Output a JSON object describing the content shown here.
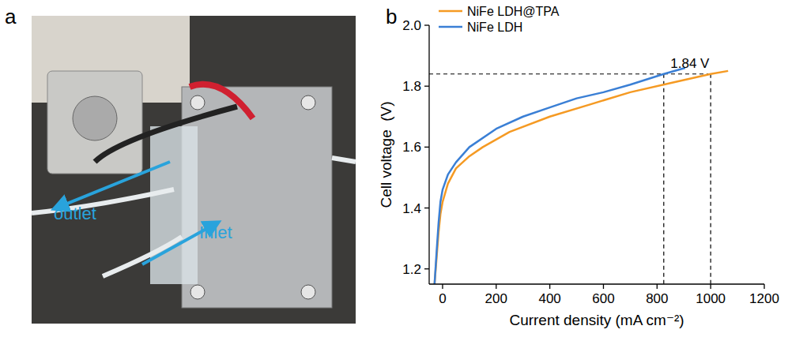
{
  "photo": {
    "label": "a",
    "outlet": "outlet",
    "inlet": "Inlet"
  },
  "chart_data": {
    "type": "line",
    "label": "b",
    "x_label": "Current density (mA cm⁻²)",
    "y_label": "Cell voltage  (V)",
    "xlim": [
      -50,
      1200
    ],
    "xticks": [
      0,
      200,
      400,
      600,
      800,
      1000,
      1200
    ],
    "ylim": [
      1.15,
      2.0
    ],
    "yticks": [
      1.2,
      1.4,
      1.6,
      1.8,
      {
        "value": 2.0,
        "label": "2.0"
      }
    ],
    "legend": "upper left",
    "grid": false,
    "series": [
      {
        "name": "NiFe LDH@TPA",
        "color": "#f59a23",
        "x": [
          -30,
          -22,
          -15,
          -8,
          0,
          20,
          50,
          100,
          150,
          250,
          400,
          550,
          700,
          850,
          1000,
          1065
        ],
        "values": [
          1.15,
          1.24,
          1.32,
          1.38,
          1.42,
          1.48,
          1.53,
          1.57,
          1.6,
          1.65,
          1.7,
          1.74,
          1.78,
          1.81,
          1.84,
          1.85
        ]
      },
      {
        "name": "NiFe LDH",
        "color": "#3a7fd5",
        "x": [
          -30,
          -22,
          -15,
          -8,
          0,
          20,
          50,
          100,
          200,
          300,
          400,
          500,
          600,
          700,
          825,
          905
        ],
        "values": [
          1.15,
          1.26,
          1.35,
          1.42,
          1.46,
          1.51,
          1.55,
          1.6,
          1.66,
          1.7,
          1.73,
          1.76,
          1.78,
          1.805,
          1.84,
          1.86
        ]
      }
    ],
    "guides": {
      "y": 1.84,
      "x": [
        825,
        1000
      ]
    },
    "annotations": [
      {
        "text": "1.84 V",
        "x": 850,
        "y": 1.84
      }
    ]
  }
}
